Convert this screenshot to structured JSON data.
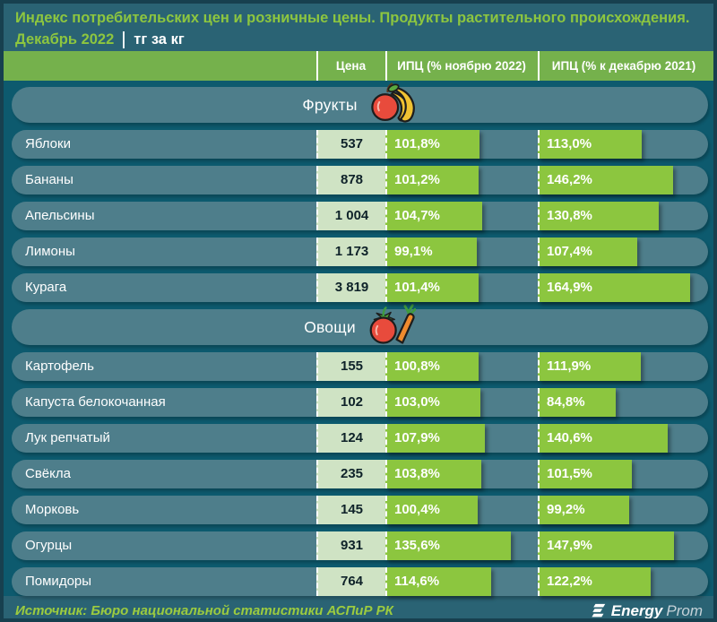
{
  "title": {
    "line1": "Индекс потребительских цен и розничные цены. Продукты растительного происхождения.",
    "period": "Декабрь 2022",
    "unit": "тг за кг"
  },
  "columns": {
    "price": "Цена",
    "ipc_month": "ИПЦ (% ноябрю 2022)",
    "ipc_year": "ИПЦ (% к декабрю 2021)"
  },
  "sections": [
    {
      "label": "Фрукты",
      "icon": "apple-bananas-icon",
      "rows": [
        {
          "label": "Яблоки",
          "price": "537",
          "m": "101,8%",
          "m_val": 101.8,
          "y": "113,0%",
          "y_val": 113.0
        },
        {
          "label": "Бананы",
          "price": "878",
          "m": "101,2%",
          "m_val": 101.2,
          "y": "146,2%",
          "y_val": 146.2
        },
        {
          "label": "Апельсины",
          "price": "1 004",
          "m": "104,7%",
          "m_val": 104.7,
          "y": "130,8%",
          "y_val": 130.8
        },
        {
          "label": "Лимоны",
          "price": "1 173",
          "m": "99,1%",
          "m_val": 99.1,
          "y": "107,4%",
          "y_val": 107.4
        },
        {
          "label": "Курага",
          "price": "3 819",
          "m": "101,4%",
          "m_val": 101.4,
          "y": "164,9%",
          "y_val": 164.9
        }
      ]
    },
    {
      "label": "Овощи",
      "icon": "tomato-carrot-icon",
      "rows": [
        {
          "label": "Картофель",
          "price": "155",
          "m": "100,8%",
          "m_val": 100.8,
          "y": "111,9%",
          "y_val": 111.9
        },
        {
          "label": "Капуста белокочанная",
          "price": "102",
          "m": "103,0%",
          "m_val": 103.0,
          "y": "84,8%",
          "y_val": 84.8
        },
        {
          "label": "Лук репчатый",
          "price": "124",
          "m": "107,9%",
          "m_val": 107.9,
          "y": "140,6%",
          "y_val": 140.6
        },
        {
          "label": "Свёкла",
          "price": "235",
          "m": "103,8%",
          "m_val": 103.8,
          "y": "101,5%",
          "y_val": 101.5
        },
        {
          "label": "Морковь",
          "price": "145",
          "m": "100,4%",
          "m_val": 100.4,
          "y": "99,2%",
          "y_val": 99.2
        },
        {
          "label": "Огурцы",
          "price": "931",
          "m": "135,6%",
          "m_val": 135.6,
          "y": "147,9%",
          "y_val": 147.9
        },
        {
          "label": "Помидоры",
          "price": "764",
          "m": "114,6%",
          "m_val": 114.6,
          "y": "122,2%",
          "y_val": 122.2
        }
      ]
    }
  ],
  "footer": {
    "source": "Источник: Бюро национальной статистики АСПиР РК",
    "logo_bold": "Energy",
    "logo_light": "Prom"
  },
  "colors": {
    "bar_green": "#8cc63f",
    "header_green": "#75b14c",
    "title_green": "#8dc63f",
    "footer_green": "#9ccb3f",
    "price_bg": "#cfe3c4",
    "row_bg": "#4e7e8b",
    "body_bg": "#0d5a6e",
    "band_bg": "#2a6374",
    "frame": "#17404f"
  },
  "chart_data": {
    "type": "bar",
    "title": "Индекс потребительских цен и розничные цены. Продукты растительного происхождения. Декабрь 2022",
    "unit": "тг за кг",
    "columns": [
      "Цена",
      "ИПЦ (% ноябрю 2022)",
      "ИПЦ (% к декабрю 2021)"
    ],
    "legend_position": "top",
    "grid": false,
    "groups": [
      {
        "name": "Фрукты",
        "rows": [
          {
            "product": "Яблоки",
            "price": 537,
            "ipc_nov2022": 101.8,
            "ipc_dec2021": 113.0
          },
          {
            "product": "Бананы",
            "price": 878,
            "ipc_nov2022": 101.2,
            "ipc_dec2021": 146.2
          },
          {
            "product": "Апельсины",
            "price": 1004,
            "ipc_nov2022": 104.7,
            "ipc_dec2021": 130.8
          },
          {
            "product": "Лимоны",
            "price": 1173,
            "ipc_nov2022": 99.1,
            "ipc_dec2021": 107.4
          },
          {
            "product": "Курага",
            "price": 3819,
            "ipc_nov2022": 101.4,
            "ipc_dec2021": 164.9
          }
        ]
      },
      {
        "name": "Овощи",
        "rows": [
          {
            "product": "Картофель",
            "price": 155,
            "ipc_nov2022": 100.8,
            "ipc_dec2021": 111.9
          },
          {
            "product": "Капуста белокочанная",
            "price": 102,
            "ipc_nov2022": 103.0,
            "ipc_dec2021": 84.8
          },
          {
            "product": "Лук репчатый",
            "price": 124,
            "ipc_nov2022": 107.9,
            "ipc_dec2021": 140.6
          },
          {
            "product": "Свёкла",
            "price": 235,
            "ipc_nov2022": 103.8,
            "ipc_dec2021": 101.5
          },
          {
            "product": "Морковь",
            "price": 145,
            "ipc_nov2022": 100.4,
            "ipc_dec2021": 99.2
          },
          {
            "product": "Огурцы",
            "price": 931,
            "ipc_nov2022": 135.6,
            "ipc_dec2021": 147.9
          },
          {
            "product": "Помидоры",
            "price": 764,
            "ipc_nov2022": 114.6,
            "ipc_dec2021": 122.2
          }
        ]
      }
    ]
  }
}
